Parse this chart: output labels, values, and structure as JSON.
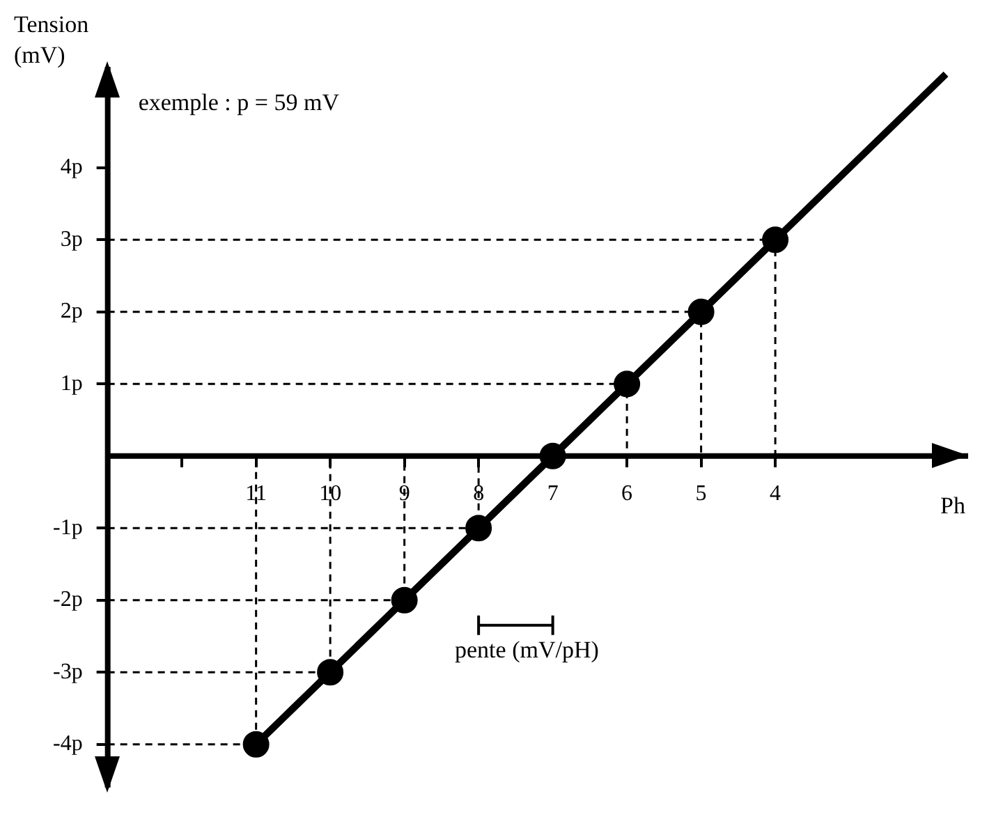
{
  "chart_data": {
    "type": "line",
    "xlabel": "Ph",
    "ylabel": "Tension\n(mV)",
    "series": [
      {
        "type": "line",
        "x": [
          11,
          10,
          9,
          8,
          7,
          6,
          5,
          4
        ],
        "values": [
          -4,
          -3,
          -2,
          -1,
          0,
          1,
          2,
          3
        ],
        "color": "#000000",
        "marker": "circle"
      },
      {
        "type": "line",
        "x": [
          11,
          1.7
        ],
        "values": [
          -4,
          5.3
        ],
        "color": "#000000",
        "marker": "none"
      },
      {
        "type": "line",
        "x": [
          13,
          11,
          11
        ],
        "values": [
          -4,
          -4,
          0
        ],
        "color": "#000000",
        "marker": "none",
        "line_style": "dashed"
      },
      {
        "type": "line",
        "x": [
          13,
          10,
          10
        ],
        "values": [
          -3,
          -3,
          0
        ],
        "color": "#000000",
        "marker": "none",
        "line_style": "dashed"
      },
      {
        "type": "line",
        "x": [
          13,
          9,
          9
        ],
        "values": [
          -2,
          -2,
          0
        ],
        "color": "#000000",
        "marker": "none",
        "line_style": "dashed"
      },
      {
        "type": "line",
        "x": [
          13,
          8,
          8
        ],
        "values": [
          -1,
          -1,
          0
        ],
        "color": "#000000",
        "marker": "none",
        "line_style": "dashed"
      },
      {
        "type": "line",
        "x": [
          13,
          6,
          6
        ],
        "values": [
          1,
          1,
          0
        ],
        "color": "#000000",
        "marker": "none",
        "line_style": "dashed"
      },
      {
        "type": "line",
        "x": [
          13,
          5,
          5
        ],
        "values": [
          2,
          2,
          0
        ],
        "color": "#000000",
        "marker": "none",
        "line_style": "dashed"
      },
      {
        "type": "line",
        "x": [
          13,
          4,
          4
        ],
        "values": [
          3,
          3,
          0
        ],
        "color": "#000000",
        "marker": "none",
        "line_style": "dashed"
      }
    ],
    "xlim": [
      13,
      1.4
    ],
    "ylim": [
      -4.6,
      5.4
    ],
    "xticks": [
      {
        "value": 12,
        "label": null
      },
      11,
      10,
      9,
      8,
      7,
      6,
      5,
      4
    ],
    "yticks": [
      {
        "value": -4,
        "label": "-4p"
      },
      {
        "value": -3,
        "label": "-3p"
      },
      {
        "value": -2,
        "label": "-2p"
      },
      {
        "value": -1,
        "label": "-1p"
      },
      {
        "value": 1,
        "label": "1p"
      },
      {
        "value": 2,
        "label": "2p"
      },
      {
        "value": 3,
        "label": "3p"
      },
      {
        "value": 4,
        "label": "4p"
      }
    ],
    "annotations": [
      "exemple : p = 59 mV",
      "pente (mV/pH)"
    ],
    "grid": false,
    "legend": false
  }
}
